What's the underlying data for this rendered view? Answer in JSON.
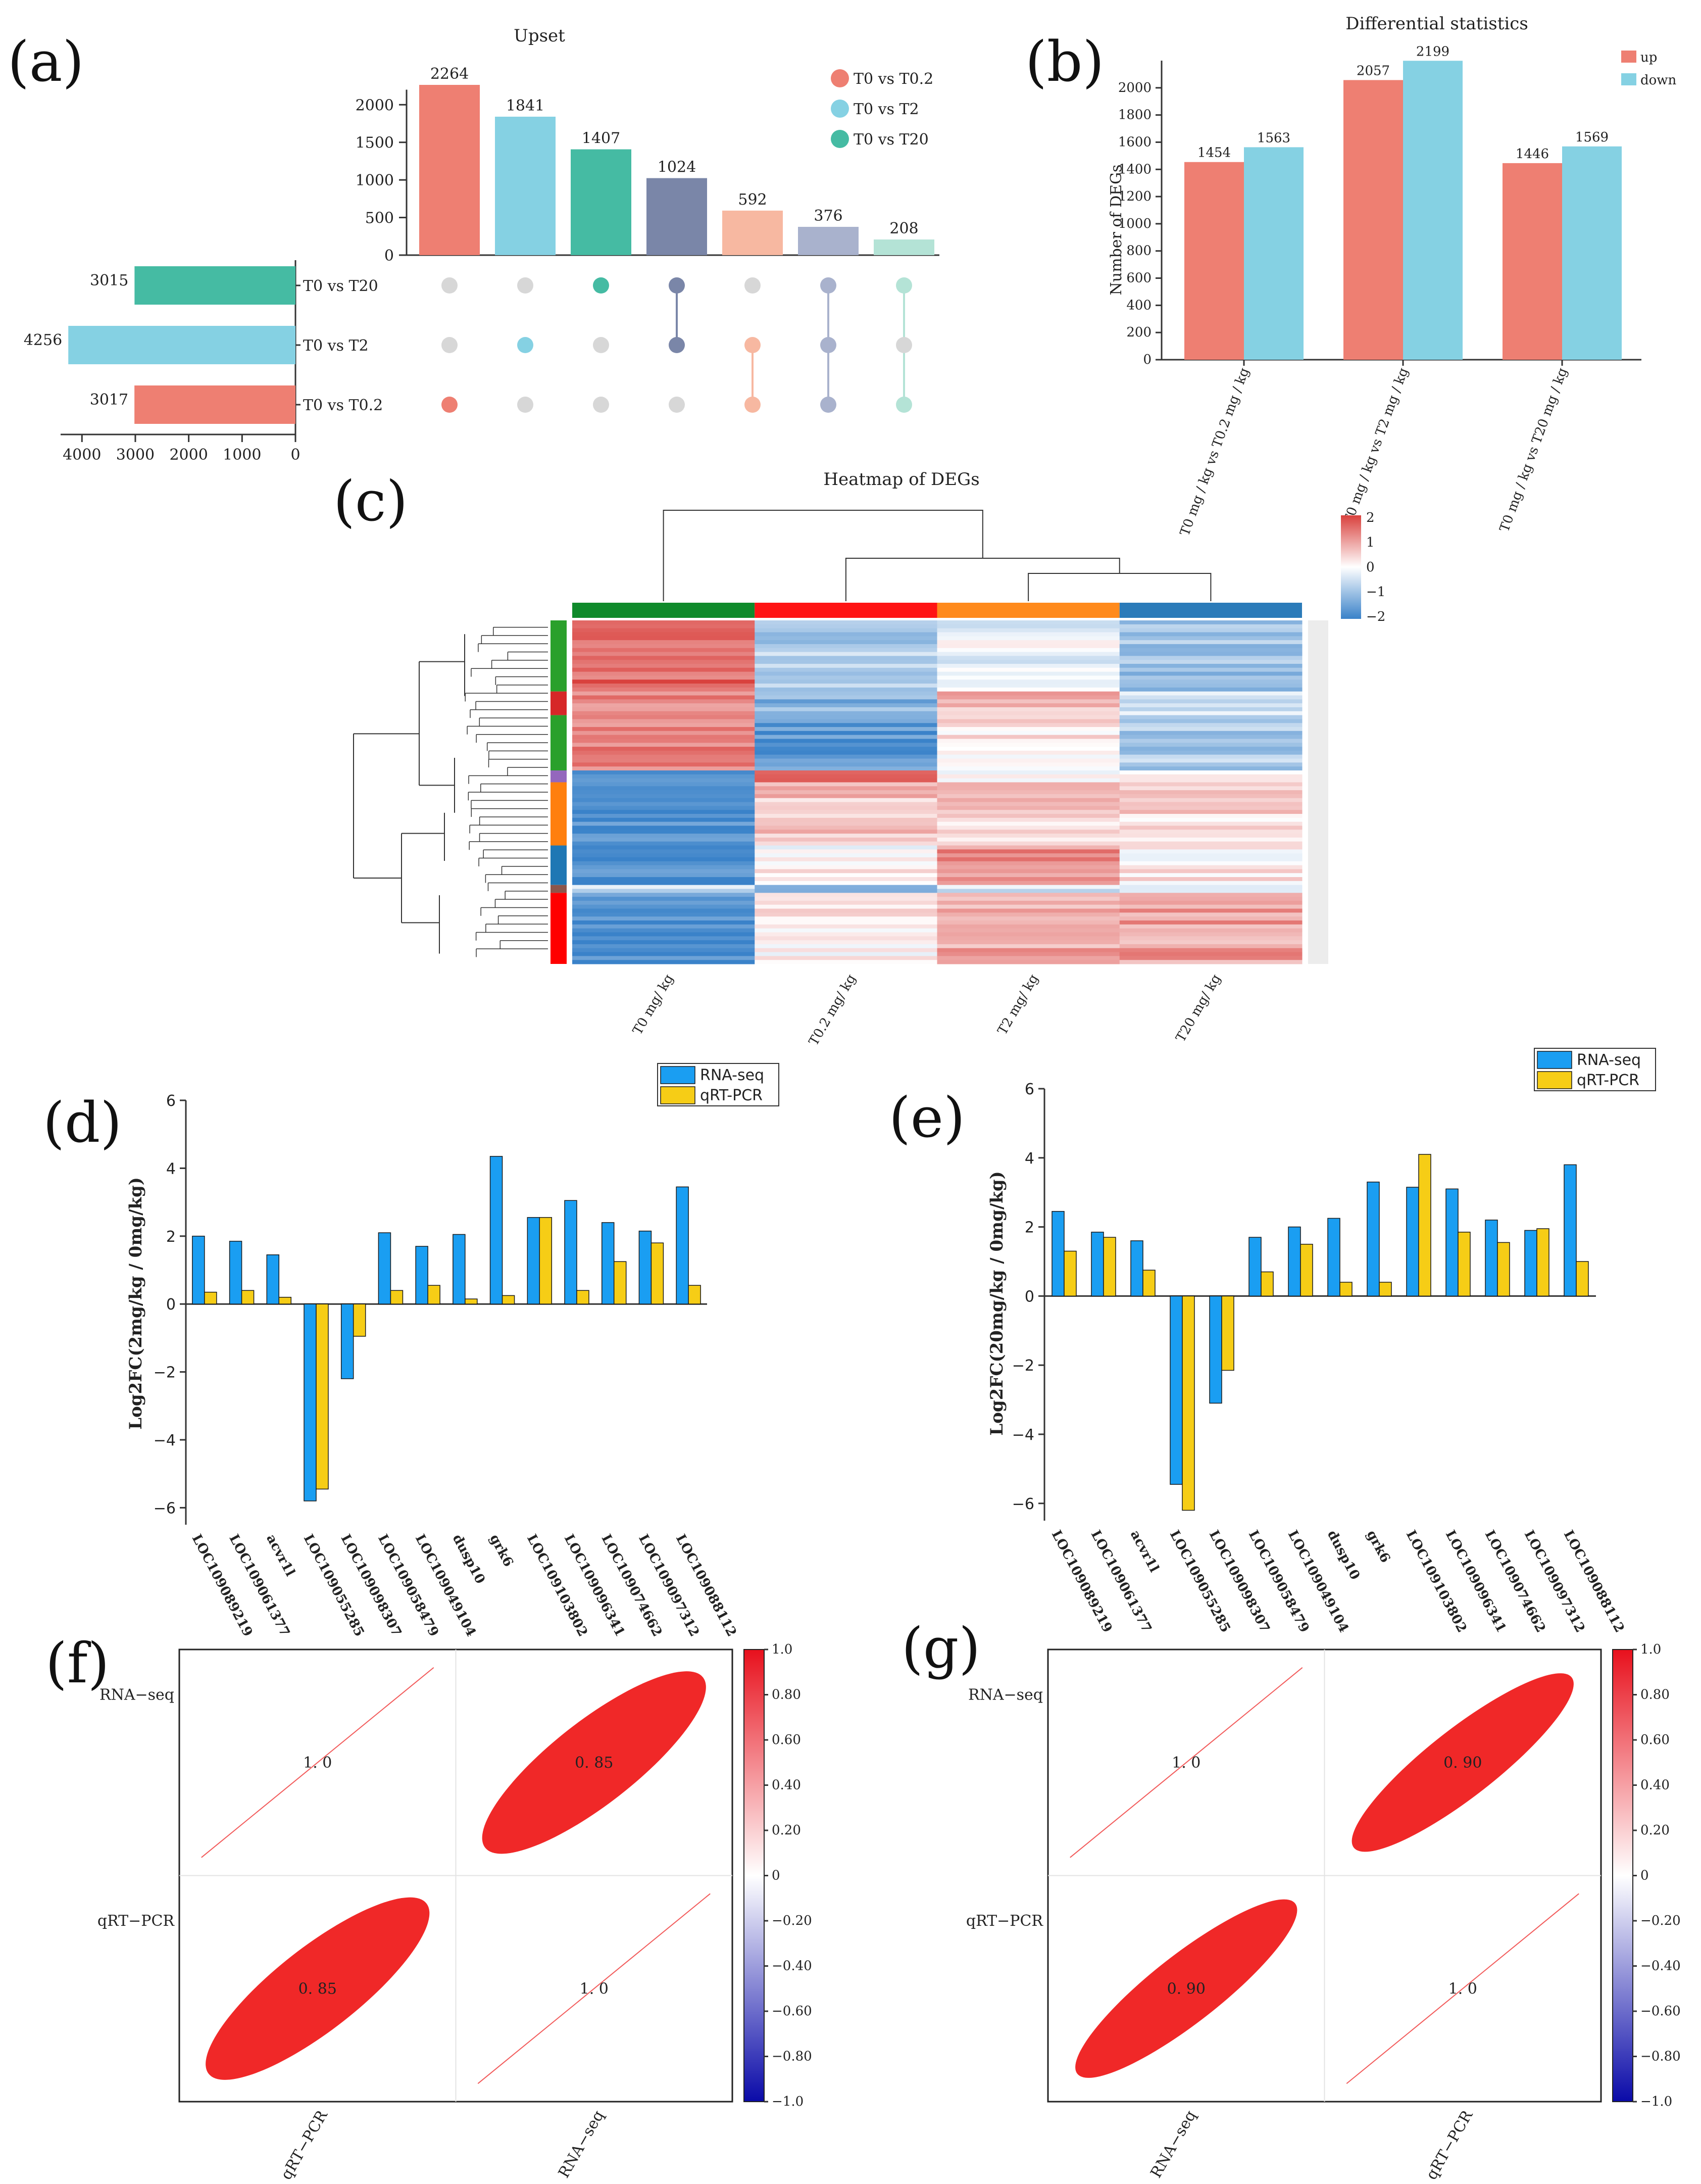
{
  "colors": {
    "salmon": "#ee7f72",
    "sky": "#85d1e3",
    "teal": "#45bba3",
    "slate": "#7a86a8",
    "peach": "#f7b8a1",
    "lavender": "#a9b2cd",
    "mint": "#b4e3d6",
    "grey_dot": "#d7d7d7",
    "blue_bar": "#1a9ef2",
    "yellow_bar": "#f6cd16",
    "hm_red": "#d9413d",
    "hm_blue": "#3a82c9",
    "hm_green": "#0f8a2b",
    "hm_orange": "#ff8a1c",
    "hm_steel": "#2b7bb9"
  },
  "chart_data": [
    {
      "panel": "(a)",
      "type": "bar",
      "title": "Upset",
      "categories": [
        "T0 vs T0.2",
        "T0 vs T2",
        "T0 vs T20",
        "T0 vs T2 & T0 vs T20",
        "T0 vs T0.2 & T0 vs T2",
        "T0 vs T0.2 & T0 vs T2 & T0 vs T20",
        "T0 vs T0.2 & T0 vs T20"
      ],
      "values": [
        2264,
        1841,
        1407,
        1024,
        592,
        376,
        208
      ],
      "value_labels": [
        "2264",
        "1841",
        "1407",
        "1024",
        "592",
        "376",
        "208"
      ],
      "ylim": [
        0,
        2264
      ],
      "yticks": [
        "0",
        "500",
        "1000",
        "1500",
        "2000"
      ],
      "legend": [
        "T0  vs  T0.2",
        "T0  vs  T2",
        "T0  vs  T20"
      ],
      "legend_position": "top-right",
      "sets": [
        "T0  vs  T20",
        "T0  vs  T2",
        "T0  vs  T0.2"
      ],
      "set_sizes": [
        3015,
        4256,
        3017
      ],
      "set_size_labels": [
        "3015",
        "4256",
        "3017"
      ],
      "set_size_xticks": [
        "4000",
        "3000",
        "2000",
        "1000",
        "0"
      ],
      "set_size_xlim": [
        0,
        4400
      ]
    },
    {
      "panel": "(b)",
      "type": "bar",
      "title": "Differential statistics",
      "ylabel": "Number of DEGs",
      "categories": [
        "T0 mg / kg vs T0.2  mg / kg",
        "T0 mg / kg vs T2  mg / kg",
        "T0 mg / kg vs T20 mg / kg"
      ],
      "series": [
        {
          "name": "up",
          "values": [
            1454,
            2057,
            1446
          ]
        },
        {
          "name": "down",
          "values": [
            1563,
            2199,
            1569
          ]
        }
      ],
      "value_labels": [
        [
          "1454",
          "1563"
        ],
        [
          "2057",
          "2199"
        ],
        [
          "1446",
          "1569"
        ]
      ],
      "ylim": [
        0,
        2200
      ],
      "yticks": [
        "0",
        "200",
        "400",
        "600",
        "800",
        "1000",
        "1200",
        "1400",
        "1600",
        "1800",
        "2000"
      ],
      "legend_position": "top-right"
    },
    {
      "panel": "(c)",
      "type": "heatmap",
      "title": "Heatmap of DEGs",
      "columns": [
        "T0 mg/ kg",
        "T0.2 mg/ kg",
        "T2 mg/ kg",
        "T20 mg/ kg"
      ],
      "color_scale_ticks": [
        "2",
        "1",
        "0",
        "−1",
        "−2"
      ],
      "color_range": [
        -2,
        2
      ],
      "row_blocks": [
        {
          "rows": 18,
          "values": [
            1.6,
            -0.8,
            -0.2,
            -1.0
          ]
        },
        {
          "rows": 6,
          "values": [
            1.2,
            -1.2,
            0.8,
            -0.6
          ]
        },
        {
          "rows": 14,
          "values": [
            1.4,
            -1.6,
            0.3,
            -0.8
          ]
        },
        {
          "rows": 3,
          "values": [
            -1.6,
            1.8,
            0.2,
            -0.1
          ]
        },
        {
          "rows": 16,
          "values": [
            -1.8,
            0.6,
            0.5,
            0.4
          ]
        },
        {
          "rows": 10,
          "values": [
            -1.8,
            0.1,
            1.2,
            0.2
          ]
        },
        {
          "rows": 2,
          "values": [
            -0.6,
            -1.4,
            -0.4,
            -0.5
          ]
        },
        {
          "rows": 18,
          "values": [
            -1.8,
            0.2,
            0.9,
            1.0
          ]
        }
      ]
    },
    {
      "panel": "(d)",
      "type": "bar",
      "ylabel": "Log2FC(2mg/kg / 0mg/kg)",
      "categories": [
        "LOC109089219",
        "LOC109061377",
        "acvr1l",
        "LOC109055285",
        "LOC109098307",
        "LOC109058479",
        "LOC109049104",
        "dusp10",
        "grk6",
        "LOC109103802",
        "LOC109096341",
        "LOC109074662",
        "LOC109097312",
        "LOC109088112"
      ],
      "series": [
        {
          "name": "RNA-seq",
          "values": [
            2.0,
            1.85,
            1.45,
            -5.8,
            -2.2,
            2.1,
            1.7,
            2.05,
            4.35,
            2.55,
            3.05,
            2.4,
            2.15,
            3.45
          ]
        },
        {
          "name": "qRT-PCR",
          "values": [
            0.35,
            0.4,
            0.2,
            -5.45,
            -0.95,
            0.4,
            0.55,
            0.15,
            0.25,
            2.55,
            0.4,
            1.25,
            1.8,
            0.55
          ]
        }
      ],
      "ylim": [
        -6.5,
        6
      ],
      "yticks": [
        "6",
        "4",
        "2",
        "0",
        "−2",
        "−4",
        "−6"
      ],
      "legend": [
        "RNA-seq",
        "qRT-PCR"
      ],
      "legend_position": "top-right"
    },
    {
      "panel": "(e)",
      "type": "bar",
      "ylabel": "Log2FC(20mg/kg / 0mg/kg)",
      "categories": [
        "LOC109089219",
        "LOC109061377",
        "acvr1l",
        "LOC109055285",
        "LOC109098307",
        "LOC109058479",
        "LOC109049104",
        "dusp10",
        "grk6",
        "LOC109103802",
        "LOC109096341",
        "LOC109074662",
        "LOC109097312",
        "LOC109088112"
      ],
      "series": [
        {
          "name": "RNA-seq",
          "values": [
            2.45,
            1.85,
            1.6,
            -5.45,
            -3.1,
            1.7,
            2.0,
            2.25,
            3.3,
            3.15,
            3.1,
            2.2,
            1.9,
            3.8
          ]
        },
        {
          "name": "qRT-PCR",
          "values": [
            1.3,
            1.7,
            0.75,
            -6.2,
            -2.15,
            0.7,
            1.5,
            0.4,
            0.4,
            4.1,
            1.85,
            1.55,
            1.95,
            1.0
          ]
        }
      ],
      "ylim": [
        -6.5,
        6
      ],
      "yticks": [
        "6",
        "4",
        "2",
        "0",
        "−2",
        "−4",
        "−6"
      ],
      "legend": [
        "RNA-seq",
        "qRT-PCR"
      ],
      "legend_position": "top-right"
    },
    {
      "panel": "(f)",
      "type": "heatmap",
      "row_labels": [
        "RNA−seq",
        "qRT−PCR"
      ],
      "col_labels": [
        "qRT−PCR",
        "RNA−seq"
      ],
      "matrix": [
        [
          1.0,
          0.85
        ],
        [
          0.85,
          1.0
        ]
      ],
      "cell_labels": [
        [
          "1. 0",
          "0. 85"
        ],
        [
          "0. 85",
          "1. 0"
        ]
      ],
      "color_range": [
        -1,
        1
      ],
      "colorbar_ticks": [
        "1.0",
        "0.80",
        "0.60",
        "0.40",
        "0.20",
        "0",
        "−0.20",
        "−0.40",
        "−0.60",
        "−0.80",
        "−1.0"
      ]
    },
    {
      "panel": "(g)",
      "type": "heatmap",
      "row_labels": [
        "RNA−seq",
        "qRT−PCR"
      ],
      "col_labels": [
        "RNA−seq",
        "qRT−PCR"
      ],
      "matrix": [
        [
          1.0,
          0.9
        ],
        [
          0.9,
          1.0
        ]
      ],
      "cell_labels": [
        [
          "1. 0",
          "0. 90"
        ],
        [
          "0. 90",
          "1. 0"
        ]
      ],
      "color_range": [
        -1,
        1
      ],
      "colorbar_ticks": [
        "1.0",
        "0.80",
        "0.60",
        "0.40",
        "0.20",
        "0",
        "−0.20",
        "−0.40",
        "−0.60",
        "−0.80",
        "−1.0"
      ]
    }
  ]
}
